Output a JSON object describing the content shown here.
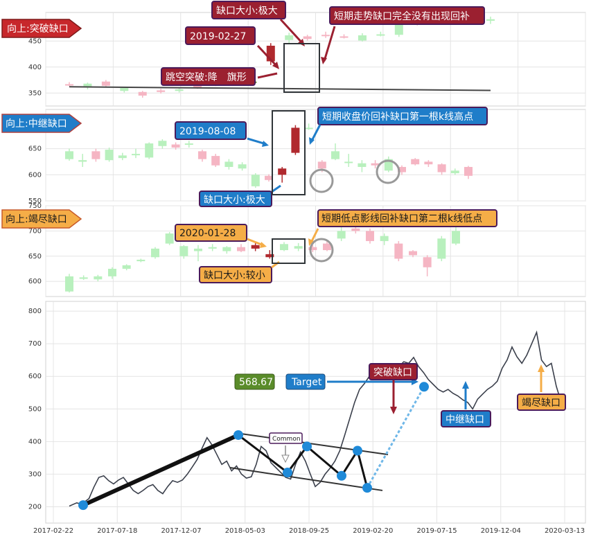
{
  "chart_data": [
    {
      "type": "candlestick",
      "panel": "breakaway",
      "title": "向上:突破缺口",
      "ylim": [
        325,
        505
      ],
      "yticks": [
        350,
        400,
        450
      ],
      "candles": [
        {
          "o": 367,
          "c": 366,
          "h": 371,
          "l": 363
        },
        {
          "o": 362,
          "c": 368,
          "h": 370,
          "l": 357
        },
        {
          "o": 372,
          "c": 364,
          "h": 375,
          "l": 361
        },
        {
          "o": 354,
          "c": 360,
          "h": 362,
          "l": 351
        },
        {
          "o": 352,
          "c": 345,
          "h": 354,
          "l": 341
        },
        {
          "o": 355,
          "c": 352,
          "h": 358,
          "l": 349
        },
        {
          "o": 354,
          "c": 357,
          "h": 360,
          "l": 351
        },
        {
          "o": 365,
          "c": 361,
          "h": 370,
          "l": 358
        },
        {
          "o": 370,
          "c": 366,
          "h": 373,
          "l": 363
        },
        {
          "o": 369,
          "c": 376,
          "h": 379,
          "l": 366
        },
        {
          "o": 371,
          "c": 372,
          "h": 377,
          "l": 368
        },
        {
          "o": 411,
          "c": 441,
          "h": 446,
          "l": 404
        },
        {
          "o": 452,
          "c": 461,
          "h": 466,
          "l": 445
        },
        {
          "o": 459,
          "c": 454,
          "h": 462,
          "l": 451
        },
        {
          "o": 462,
          "c": 460,
          "h": 468,
          "l": 456
        },
        {
          "o": 459,
          "c": 458,
          "h": 463,
          "l": 455
        },
        {
          "o": 451,
          "c": 461,
          "h": 465,
          "l": 449
        },
        {
          "o": 463,
          "c": 463,
          "h": 468,
          "l": 459
        },
        {
          "o": 462,
          "c": 488,
          "h": 490,
          "l": 458
        },
        {
          "o": 492,
          "c": 483,
          "h": 496,
          "l": 480
        },
        {
          "o": 488,
          "c": 502,
          "h": 505,
          "l": 485
        },
        {
          "o": 503,
          "c": 497,
          "h": 506,
          "l": 493
        },
        {
          "o": 496,
          "c": 489,
          "h": 499,
          "l": 486
        },
        {
          "o": 489,
          "c": 492,
          "h": 497,
          "l": 483
        }
      ],
      "trendline": [
        [
          0,
          362
        ],
        [
          23,
          355
        ]
      ],
      "annotations": [
        "缺口大小:极大",
        "2019-02-27",
        "跳空突破:降　旗形",
        "短期走势缺口完全没有出现回补"
      ]
    },
    {
      "type": "candlestick",
      "panel": "runaway",
      "title": "向上:中继缺口",
      "ylim": [
        550,
        725
      ],
      "yticks": [
        550,
        600,
        650
      ],
      "candles": [
        {
          "o": 630,
          "c": 645,
          "h": 650,
          "l": 627
        },
        {
          "o": 625,
          "c": 628,
          "h": 640,
          "l": 615
        },
        {
          "o": 645,
          "c": 630,
          "h": 650,
          "l": 625
        },
        {
          "o": 628,
          "c": 648,
          "h": 652,
          "l": 625
        },
        {
          "o": 632,
          "c": 637,
          "h": 642,
          "l": 628
        },
        {
          "o": 640,
          "c": 640,
          "h": 650,
          "l": 632
        },
        {
          "o": 633,
          "c": 660,
          "h": 662,
          "l": 630
        },
        {
          "o": 655,
          "c": 665,
          "h": 668,
          "l": 650
        },
        {
          "o": 658,
          "c": 652,
          "h": 662,
          "l": 648
        },
        {
          "o": 658,
          "c": 660,
          "h": 665,
          "l": 652
        },
        {
          "o": 645,
          "c": 630,
          "h": 648,
          "l": 625
        },
        {
          "o": 636,
          "c": 618,
          "h": 640,
          "l": 615
        },
        {
          "o": 615,
          "c": 625,
          "h": 630,
          "l": 610
        },
        {
          "o": 612,
          "c": 620,
          "h": 624,
          "l": 608
        },
        {
          "o": 578,
          "c": 600,
          "h": 603,
          "l": 575
        },
        {
          "o": 598,
          "c": 590,
          "h": 601,
          "l": 587
        },
        {
          "o": 600,
          "c": 612,
          "h": 615,
          "l": 585
        },
        {
          "o": 642,
          "c": 690,
          "h": 695,
          "l": 638
        },
        {
          "o": 690,
          "c": 690,
          "h": 698,
          "l": 686
        },
        {
          "o": 625,
          "c": 612,
          "h": 628,
          "l": 605
        },
        {
          "o": 630,
          "c": 645,
          "h": 660,
          "l": 628
        },
        {
          "o": 625,
          "c": 625,
          "h": 640,
          "l": 615
        },
        {
          "o": 615,
          "c": 622,
          "h": 628,
          "l": 605
        },
        {
          "o": 622,
          "c": 618,
          "h": 628,
          "l": 612
        },
        {
          "o": 608,
          "c": 630,
          "h": 635,
          "l": 605
        },
        {
          "o": 615,
          "c": 605,
          "h": 618,
          "l": 600
        },
        {
          "o": 630,
          "c": 620,
          "h": 632,
          "l": 618
        },
        {
          "o": 625,
          "c": 620,
          "h": 628,
          "l": 615
        },
        {
          "o": 620,
          "c": 605,
          "h": 622,
          "l": 600
        },
        {
          "o": 603,
          "c": 608,
          "h": 612,
          "l": 600
        },
        {
          "o": 615,
          "c": 598,
          "h": 617,
          "l": 592
        }
      ],
      "annotations": [
        "2019-08-08",
        "短期收盘价回补缺口第一根k线高点",
        "缺口大小:极大"
      ]
    },
    {
      "type": "candlestick",
      "panel": "exhaustion",
      "title": "向上:竭尽缺口",
      "ylim": [
        570,
        750
      ],
      "yticks": [
        600,
        650,
        700,
        750
      ],
      "candles": [
        {
          "o": 580,
          "c": 610,
          "h": 615,
          "l": 578
        },
        {
          "o": 605,
          "c": 608,
          "h": 612,
          "l": 603
        },
        {
          "o": 604,
          "c": 610,
          "h": 613,
          "l": 600
        },
        {
          "o": 610,
          "c": 625,
          "h": 628,
          "l": 605
        },
        {
          "o": 625,
          "c": 632,
          "h": 634,
          "l": 622
        },
        {
          "o": 640,
          "c": 643,
          "h": 645,
          "l": 638
        },
        {
          "o": 648,
          "c": 665,
          "h": 668,
          "l": 645
        },
        {
          "o": 675,
          "c": 695,
          "h": 698,
          "l": 672
        },
        {
          "o": 650,
          "c": 670,
          "h": 672,
          "l": 645
        },
        {
          "o": 660,
          "c": 665,
          "h": 672,
          "l": 640
        },
        {
          "o": 665,
          "c": 668,
          "h": 674,
          "l": 660
        },
        {
          "o": 660,
          "c": 668,
          "h": 670,
          "l": 655
        },
        {
          "o": 668,
          "c": 660,
          "h": 674,
          "l": 658
        },
        {
          "o": 665,
          "c": 672,
          "h": 676,
          "l": 660
        },
        {
          "o": 648,
          "c": 654,
          "h": 662,
          "l": 645
        },
        {
          "o": 662,
          "c": 674,
          "h": 678,
          "l": 660
        },
        {
          "o": 665,
          "c": 670,
          "h": 676,
          "l": 660
        },
        {
          "o": 668,
          "c": 662,
          "h": 672,
          "l": 658
        },
        {
          "o": 675,
          "c": 662,
          "h": 680,
          "l": 660
        },
        {
          "o": 685,
          "c": 700,
          "h": 710,
          "l": 680
        },
        {
          "o": 705,
          "c": 700,
          "h": 712,
          "l": 695
        },
        {
          "o": 700,
          "c": 680,
          "h": 705,
          "l": 675
        },
        {
          "o": 680,
          "c": 690,
          "h": 695,
          "l": 672
        },
        {
          "o": 675,
          "c": 645,
          "h": 680,
          "l": 640
        },
        {
          "o": 660,
          "c": 652,
          "h": 662,
          "l": 648
        },
        {
          "o": 648,
          "c": 628,
          "h": 652,
          "l": 610
        },
        {
          "o": 645,
          "c": 685,
          "h": 690,
          "l": 640
        },
        {
          "o": 675,
          "c": 700,
          "h": 710,
          "l": 672
        }
      ],
      "annotations": [
        "2020-01-28",
        "短期低点影线回补缺口第二根k线低点",
        "缺口大小:较小"
      ]
    },
    {
      "type": "line",
      "panel": "overview",
      "xlabels": [
        "2017-02-22",
        "2017-07-18",
        "2017-12-07",
        "2018-05-03",
        "2018-09-25",
        "2019-02-20",
        "2019-07-15",
        "2019-12-04",
        "2020-03-13"
      ],
      "yticks": [
        200,
        300,
        400,
        500,
        600,
        700,
        800
      ],
      "ylim": [
        150,
        830
      ],
      "series": [
        {
          "values": [
            [
              0,
              202
            ],
            [
              3,
              212
            ],
            [
              5,
              208
            ],
            [
              8,
              225
            ],
            [
              10,
              260
            ],
            [
              12,
              290
            ],
            [
              14,
              295
            ],
            [
              16,
              280
            ],
            [
              18,
              270
            ],
            [
              20,
              282
            ],
            [
              22,
              290
            ],
            [
              24,
              270
            ],
            [
              26,
              250
            ],
            [
              28,
              240
            ],
            [
              30,
              250
            ],
            [
              32,
              262
            ],
            [
              34,
              268
            ],
            [
              36,
              250
            ],
            [
              38,
              240
            ],
            [
              40,
              262
            ],
            [
              42,
              280
            ],
            [
              44,
              275
            ],
            [
              46,
              282
            ],
            [
              48,
              300
            ],
            [
              50,
              322
            ],
            [
              52,
              345
            ],
            [
              54,
              380
            ],
            [
              56,
              412
            ],
            [
              58,
              390
            ],
            [
              60,
              360
            ],
            [
              62,
              330
            ],
            [
              64,
              340
            ],
            [
              66,
              310
            ],
            [
              68,
              325
            ],
            [
              70,
              300
            ],
            [
              72,
              288
            ],
            [
              74,
              292
            ],
            [
              76,
              330
            ],
            [
              78,
              385
            ],
            [
              80,
              372
            ],
            [
              82,
              335
            ],
            [
              84,
              320
            ],
            [
              86,
              305
            ],
            [
              88,
              290
            ],
            [
              90,
              285
            ],
            [
              92,
              330
            ],
            [
              94,
              368
            ],
            [
              96,
              340
            ],
            [
              98,
              300
            ],
            [
              100,
              262
            ],
            [
              102,
              275
            ],
            [
              104,
              300
            ],
            [
              106,
              318
            ],
            [
              108,
              340
            ],
            [
              110,
              372
            ],
            [
              112,
              420
            ],
            [
              114,
              470
            ],
            [
              116,
              520
            ],
            [
              118,
              560
            ],
            [
              120,
              578
            ],
            [
              122,
              600
            ],
            [
              124,
              625
            ],
            [
              126,
              612
            ],
            [
              128,
              630
            ],
            [
              130,
              638
            ],
            [
              132,
              620
            ],
            [
              134,
              630
            ],
            [
              136,
              645
            ],
            [
              138,
              640
            ],
            [
              140,
              658
            ],
            [
              142,
              630
            ],
            [
              144,
              612
            ],
            [
              146,
              590
            ],
            [
              148,
              575
            ],
            [
              150,
              560
            ],
            [
              152,
              552
            ],
            [
              154,
              560
            ],
            [
              156,
              548
            ],
            [
              158,
              540
            ],
            [
              160,
              528
            ],
            [
              162,
              520
            ],
            [
              164,
              500
            ],
            [
              166,
              530
            ],
            [
              168,
              545
            ],
            [
              170,
              560
            ],
            [
              172,
              570
            ],
            [
              174,
              585
            ],
            [
              176,
              625
            ],
            [
              178,
              650
            ],
            [
              180,
              690
            ],
            [
              182,
              660
            ],
            [
              184,
              640
            ],
            [
              186,
              665
            ],
            [
              188,
              700
            ],
            [
              190,
              735
            ],
            [
              192,
              650
            ],
            [
              194,
              630
            ],
            [
              196,
              640
            ],
            [
              198,
              570
            ],
            [
              200,
              520
            ]
          ]
        }
      ],
      "pattern_points": [
        [
          120,
          205
        ],
        [
          344,
          420
        ],
        [
          443,
          385
        ],
        [
          415,
          305
        ],
        [
          493,
          295
        ],
        [
          516,
          372
        ],
        [
          530,
          258
        ],
        [
          612,
          568
        ]
      ],
      "annotations": [
        "568.67",
        "Target",
        "突破缺口",
        "中继缺口",
        "竭尽缺口",
        "Common"
      ]
    }
  ]
}
